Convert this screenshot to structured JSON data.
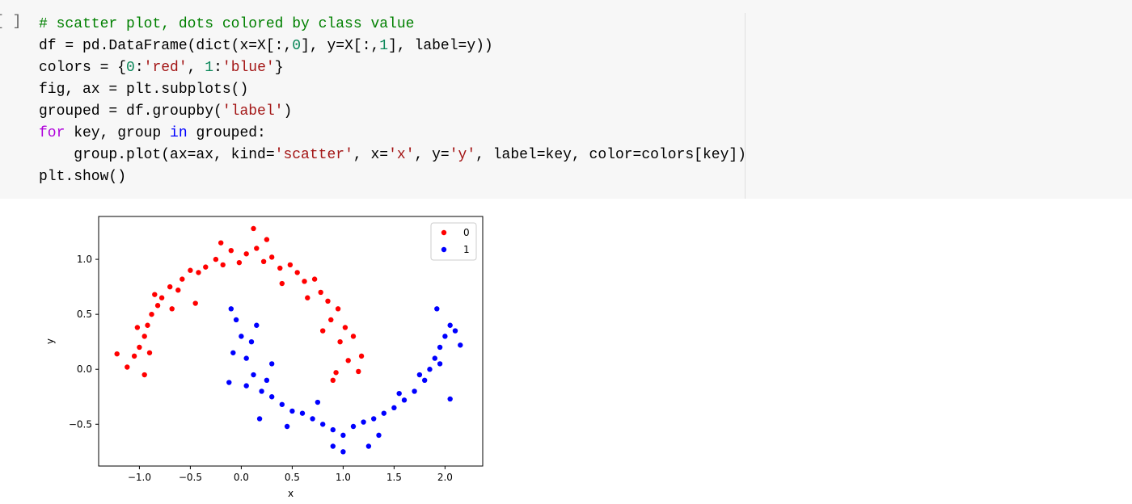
{
  "cell": {
    "prompt": "[ ]",
    "code_lines": [
      [
        {
          "text": "# scatter plot, dots colored by class value",
          "color": "#008000"
        }
      ],
      [
        {
          "text": "df = pd.DataFrame(dict(x=X[:,",
          "color": "#000000"
        },
        {
          "text": "0",
          "color": "#098658"
        },
        {
          "text": "], y=X[:,",
          "color": "#000000"
        },
        {
          "text": "1",
          "color": "#098658"
        },
        {
          "text": "], label=y))",
          "color": "#000000"
        }
      ],
      [
        {
          "text": "colors = {",
          "color": "#000000"
        },
        {
          "text": "0",
          "color": "#098658"
        },
        {
          "text": ":",
          "color": "#000000"
        },
        {
          "text": "'red'",
          "color": "#a31515"
        },
        {
          "text": ", ",
          "color": "#000000"
        },
        {
          "text": "1",
          "color": "#098658"
        },
        {
          "text": ":",
          "color": "#000000"
        },
        {
          "text": "'blue'",
          "color": "#a31515"
        },
        {
          "text": "}",
          "color": "#000000"
        }
      ],
      [
        {
          "text": "fig, ax = plt.subplots()",
          "color": "#000000"
        }
      ],
      [
        {
          "text": "grouped = df.groupby(",
          "color": "#000000"
        },
        {
          "text": "'label'",
          "color": "#a31515"
        },
        {
          "text": ")",
          "color": "#000000"
        }
      ],
      [
        {
          "text": "for",
          "color": "#af00db"
        },
        {
          "text": " key, group ",
          "color": "#000000"
        },
        {
          "text": "in",
          "color": "#0000ff"
        },
        {
          "text": " grouped:",
          "color": "#000000"
        }
      ],
      [
        {
          "text": "    group.plot(ax=ax, kind=",
          "color": "#000000"
        },
        {
          "text": "'scatter'",
          "color": "#a31515"
        },
        {
          "text": ", x=",
          "color": "#000000"
        },
        {
          "text": "'x'",
          "color": "#a31515"
        },
        {
          "text": ", y=",
          "color": "#000000"
        },
        {
          "text": "'y'",
          "color": "#a31515"
        },
        {
          "text": ", label=key, color=colors[key])",
          "color": "#000000"
        }
      ],
      [
        {
          "text": "plt.show()",
          "color": "#000000"
        }
      ]
    ]
  },
  "chart_data": {
    "type": "scatter",
    "xlabel": "x",
    "ylabel": "y",
    "xlim": [
      -1.4,
      2.37
    ],
    "ylim": [
      -0.88,
      1.39
    ],
    "xticks": [
      {
        "value": -1.0,
        "label": "−1.0"
      },
      {
        "value": -0.5,
        "label": "−0.5"
      },
      {
        "value": 0,
        "label": "0.0"
      },
      {
        "value": 0.5,
        "label": "0.5"
      },
      {
        "value": 1.0,
        "label": "1.0"
      },
      {
        "value": 1.5,
        "label": "1.5"
      },
      {
        "value": 2.0,
        "label": "2.0"
      }
    ],
    "yticks": [
      {
        "value": -0.5,
        "label": "−0.5"
      },
      {
        "value": 0,
        "label": "0.0"
      },
      {
        "value": 0.5,
        "label": "0.5"
      },
      {
        "value": 1.0,
        "label": "1.0"
      }
    ],
    "legend": "upper right",
    "series": [
      {
        "name": "0",
        "color": "#ff0000",
        "x": [
          1.18,
          1.05,
          0.93,
          0.97,
          1.02,
          0.88,
          0.95,
          0.85,
          0.78,
          0.72,
          0.62,
          0.55,
          0.48,
          0.38,
          0.3,
          0.22,
          0.15,
          0.05,
          -0.02,
          -0.1,
          -0.18,
          -0.25,
          -0.35,
          -0.42,
          -0.5,
          -0.58,
          -0.62,
          -0.7,
          -0.78,
          -0.82,
          -0.88,
          -0.92,
          -0.95,
          -1.0,
          -1.05,
          -1.12,
          -0.95,
          -0.9,
          -1.02,
          -0.85,
          -0.68,
          -0.45,
          -0.2,
          0.12,
          0.25,
          0.4,
          0.65,
          0.8,
          1.1,
          -1.22,
          1.15,
          0.9
        ],
        "values": [
          0.12,
          0.08,
          -0.03,
          0.25,
          0.38,
          0.45,
          0.55,
          0.62,
          0.7,
          0.82,
          0.8,
          0.88,
          0.95,
          0.92,
          1.02,
          0.98,
          1.1,
          1.05,
          0.97,
          1.08,
          0.95,
          1.0,
          0.93,
          0.88,
          0.9,
          0.82,
          0.72,
          0.75,
          0.65,
          0.58,
          0.5,
          0.4,
          0.3,
          0.2,
          0.12,
          0.02,
          -0.05,
          0.15,
          0.38,
          0.68,
          0.55,
          0.6,
          1.15,
          1.28,
          1.18,
          0.78,
          0.65,
          0.35,
          0.3,
          0.14,
          -0.02,
          -0.1
        ]
      },
      {
        "name": "1",
        "color": "#0000ff",
        "x": [
          -0.1,
          -0.05,
          0.0,
          -0.08,
          0.05,
          0.12,
          0.05,
          0.2,
          0.3,
          0.4,
          0.5,
          0.6,
          0.7,
          0.8,
          0.9,
          1.0,
          1.1,
          1.2,
          1.3,
          1.4,
          1.5,
          1.6,
          1.7,
          1.8,
          1.85,
          1.9,
          1.95,
          2.0,
          2.05,
          1.92,
          2.1,
          2.15,
          1.75,
          1.55,
          1.35,
          1.0,
          0.75,
          0.45,
          0.25,
          0.15,
          0.1,
          -0.12,
          0.3,
          2.05,
          1.95,
          0.9,
          1.25,
          0.18
        ],
        "values": [
          0.55,
          0.45,
          0.3,
          0.15,
          0.1,
          -0.05,
          -0.15,
          -0.2,
          -0.25,
          -0.32,
          -0.38,
          -0.4,
          -0.45,
          -0.5,
          -0.55,
          -0.6,
          -0.52,
          -0.48,
          -0.45,
          -0.4,
          -0.35,
          -0.28,
          -0.2,
          -0.1,
          0.0,
          0.1,
          0.2,
          0.3,
          0.4,
          0.55,
          0.35,
          0.22,
          -0.05,
          -0.22,
          -0.6,
          -0.75,
          -0.3,
          -0.52,
          -0.1,
          0.4,
          0.25,
          -0.12,
          0.05,
          -0.27,
          0.05,
          -0.7,
          -0.7,
          -0.45
        ]
      }
    ]
  }
}
